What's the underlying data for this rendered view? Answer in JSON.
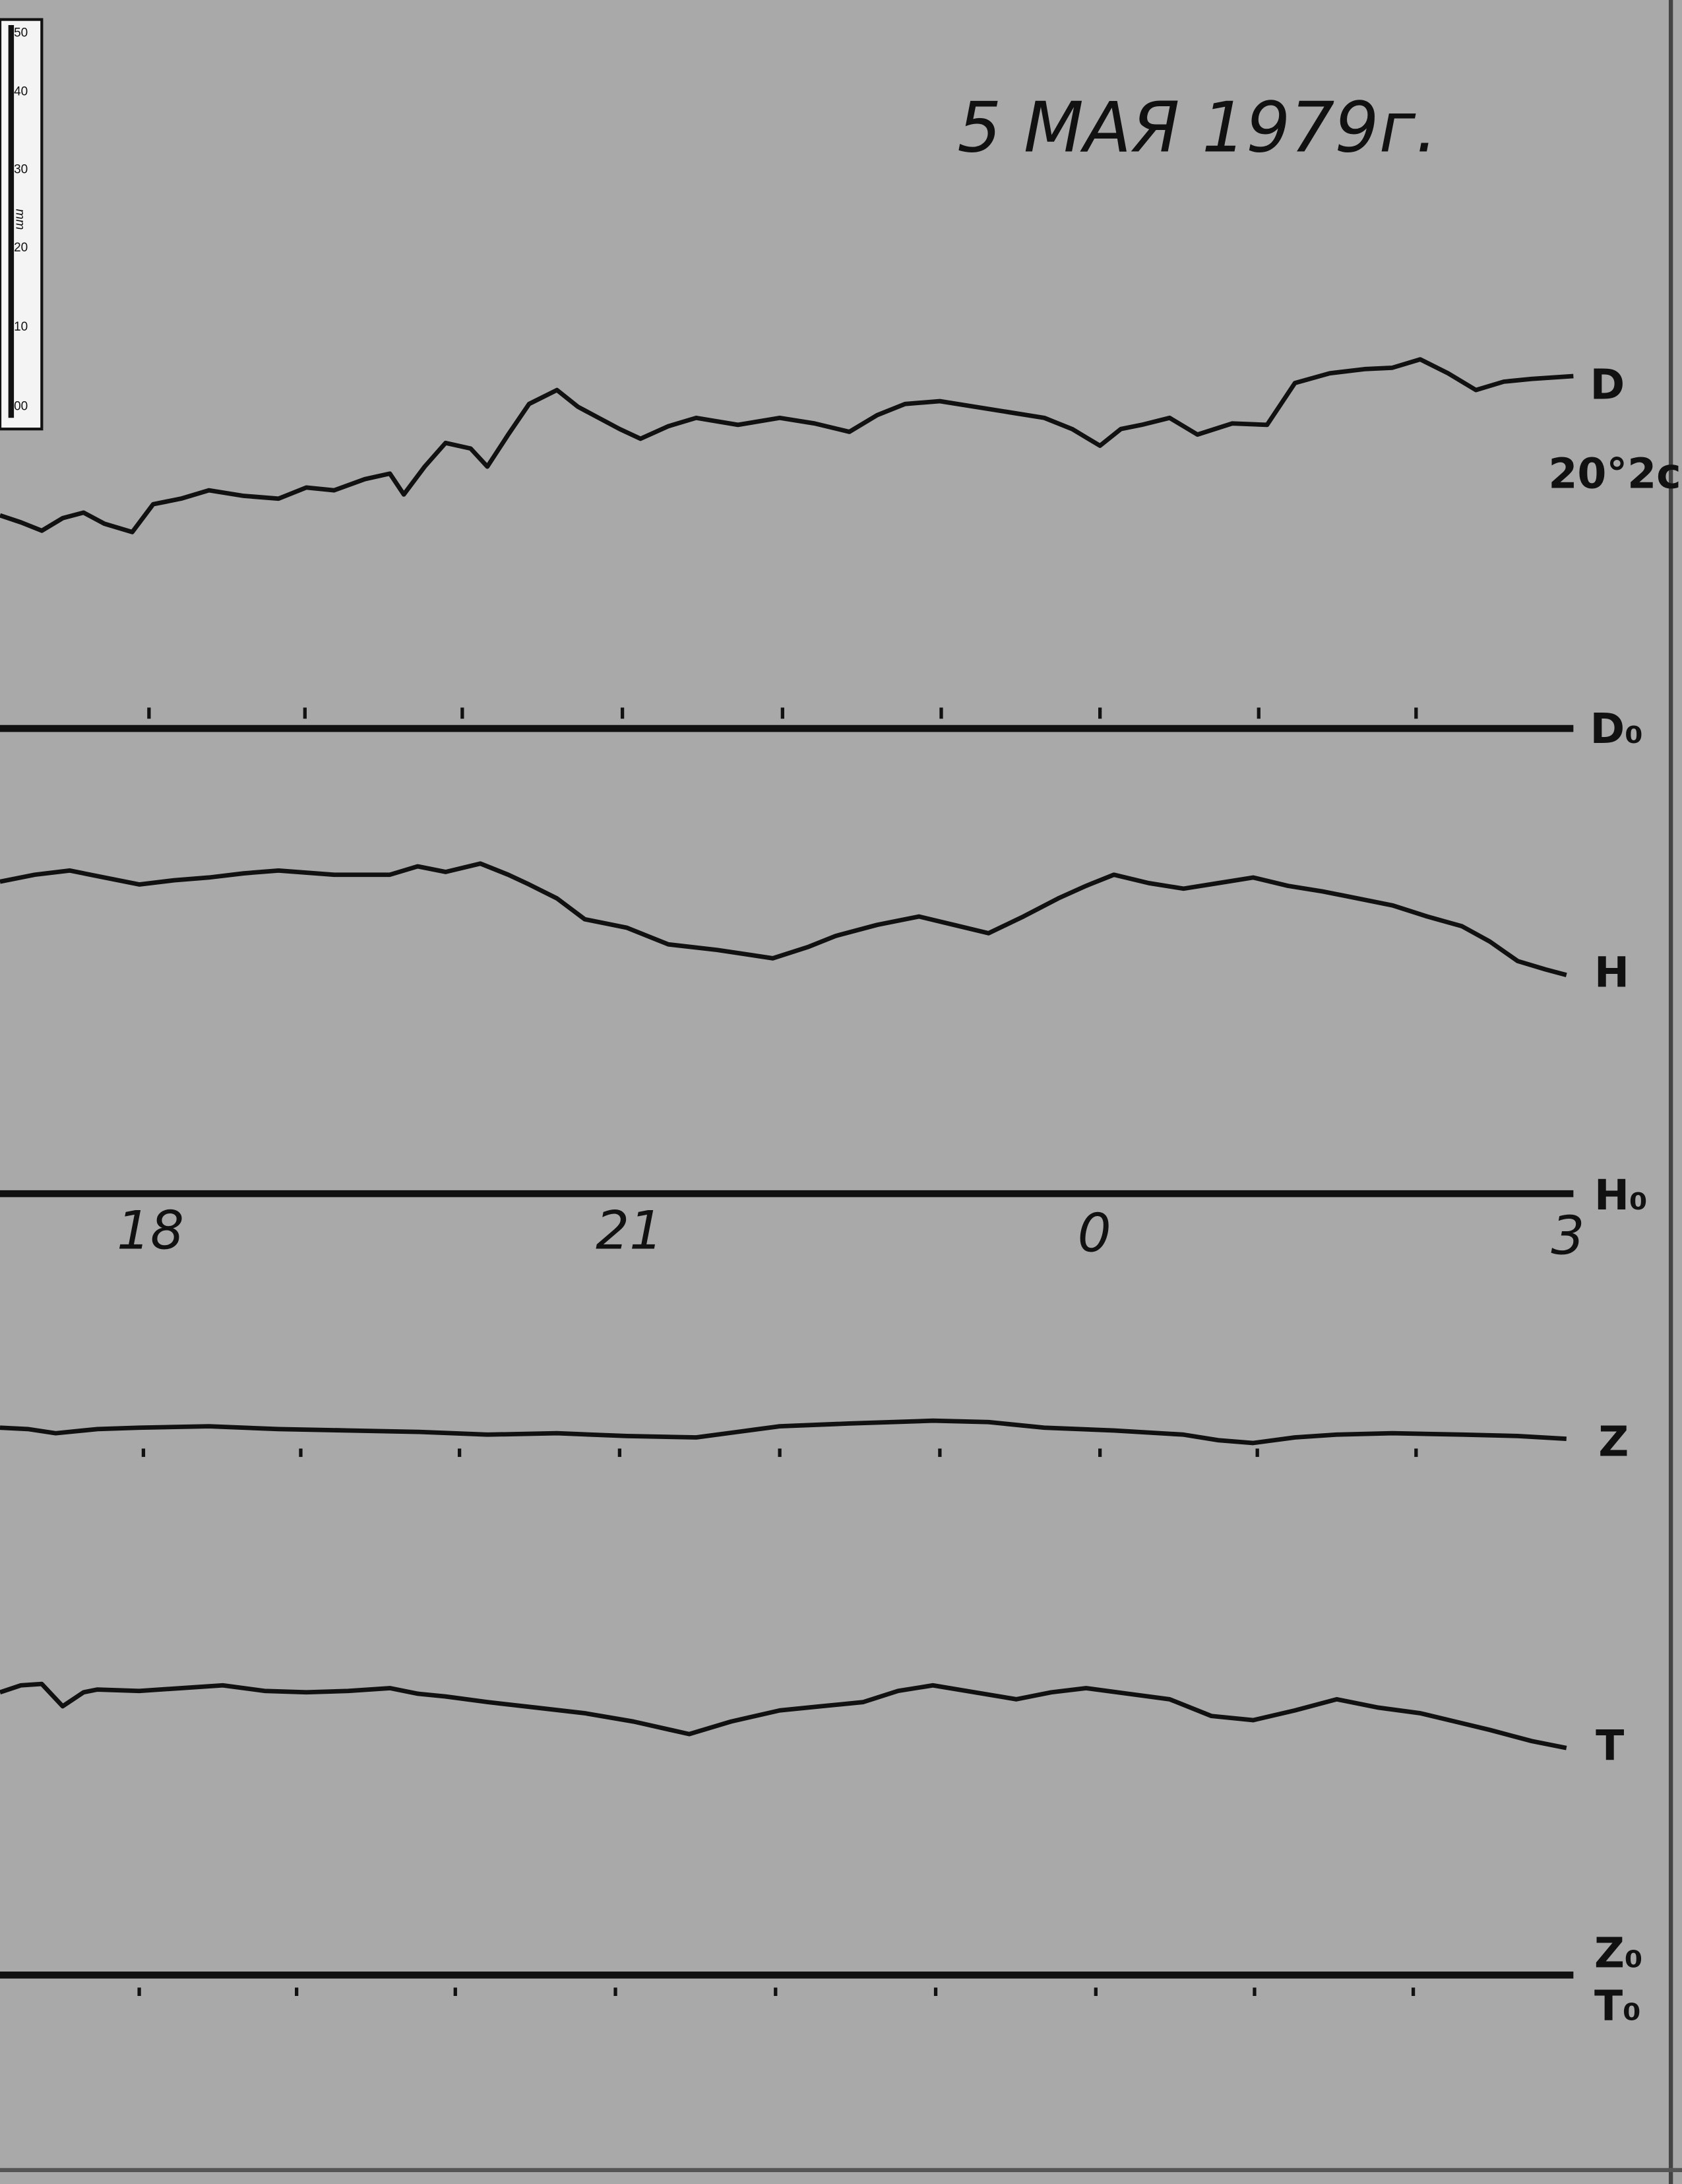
{
  "header": {
    "title": "5 МАЯ   1979г."
  },
  "ruler": {
    "labels": [
      "50",
      "40",
      "30",
      "20",
      "10",
      "00"
    ],
    "unit": "mm"
  },
  "traces": {
    "D": "D",
    "D_note": "20°2c",
    "D0": "D₀",
    "H": "H",
    "H0": "H₀",
    "Z": "Z",
    "T": "T",
    "Z0": "Z₀",
    "T0": "T₀"
  },
  "time_labels": [
    "18",
    "21",
    "0",
    "3"
  ]
}
